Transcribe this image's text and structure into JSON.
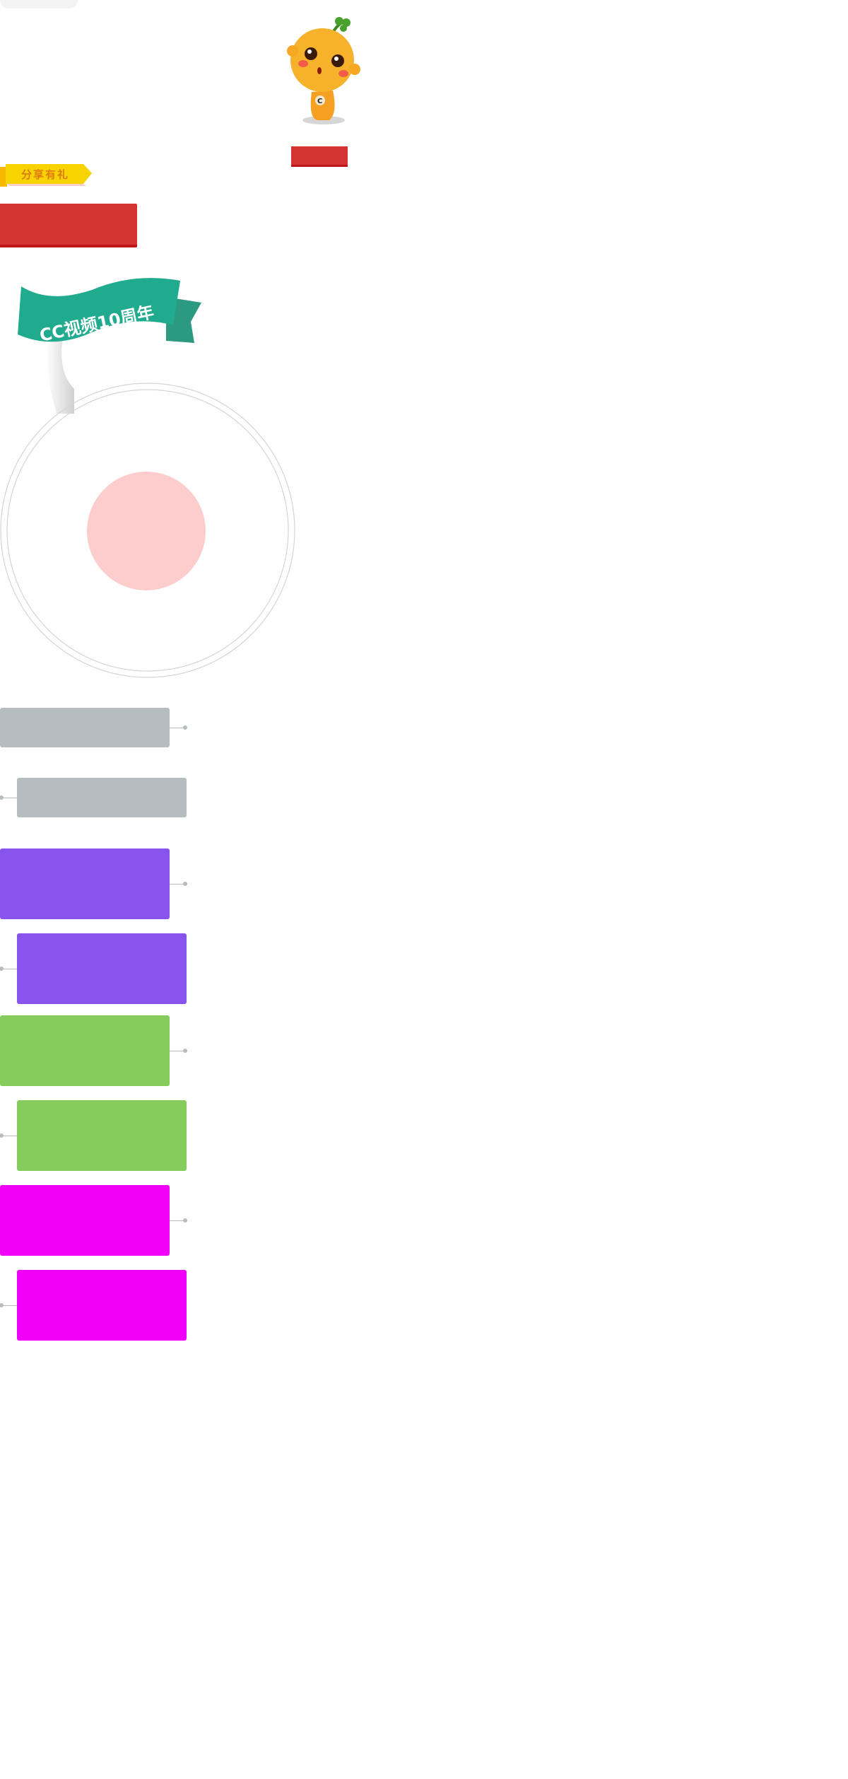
{
  "share_tag": {
    "label": "分享有礼"
  },
  "banner": {
    "text": "CC视频10周年"
  },
  "colors": {
    "red": "#d43434",
    "yellow": "#f7d400",
    "teal": "#20ab8e",
    "pink_circle": "#fdcdcd",
    "ring": "#d5d5d5",
    "bar_grey": "#b6bdc0",
    "bar_purple": "#8854ec",
    "bar_green": "#85cc5c",
    "bar_magenta": "#f100f8"
  },
  "icons": {
    "mascot": "orange-sprout-mascot"
  },
  "timeline": [
    {
      "color": "#b6bdc0",
      "side": "left"
    },
    {
      "color": "#b6bdc0",
      "side": "right"
    },
    {
      "color": "#8854ec",
      "side": "left"
    },
    {
      "color": "#8854ec",
      "side": "right"
    },
    {
      "color": "#85cc5c",
      "side": "left"
    },
    {
      "color": "#85cc5c",
      "side": "right"
    },
    {
      "color": "#f100f8",
      "side": "left"
    },
    {
      "color": "#f100f8",
      "side": "right"
    }
  ]
}
